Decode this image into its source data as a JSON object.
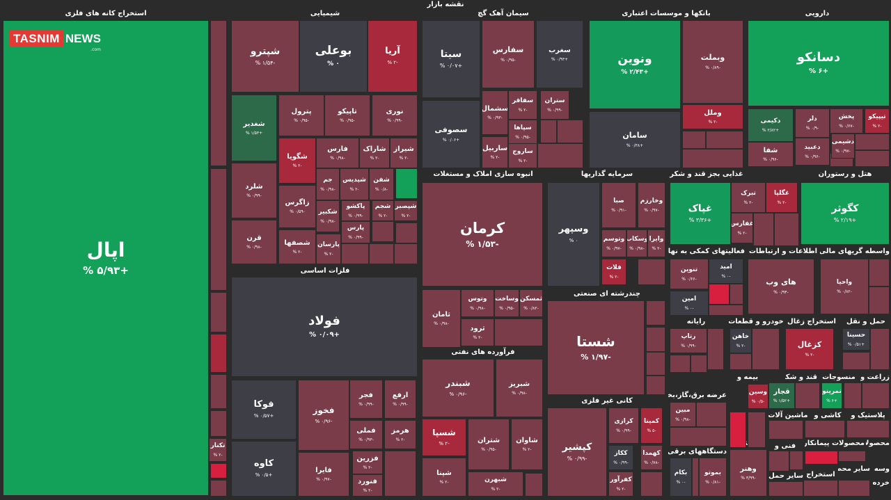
{
  "page_title": "نقشه بازار",
  "logo": {
    "part1": "TASNIM",
    "part2": "NEWS",
    "suffix": ".com"
  },
  "colors": {
    "bright_green": "#13a058",
    "green": "#149a5a",
    "dark_green": "#2d6a4a",
    "neutral": "#3e3e46",
    "maroon": "#7a3c48",
    "red": "#a8283c",
    "bright_red": "#d81f3f",
    "background": "#2b2b2b"
  },
  "sectors": [
    "استخراج کانه های فلزی",
    "شیمیایی",
    "سیمان آهک گچ",
    "بانکها و موسسات اعتباری",
    "دارویی",
    "انبوه سازی املاک و مستغلات",
    "سرمایه گذاریها",
    "غذایی بجز قند و شکر",
    "هتل و رستوران",
    "فلزات اساسی",
    "فعالیتهای کمکی به نهاد",
    "اطلاعات و ارتباطات",
    "واسطه گریهای مالی و",
    "فرآورده های نفتی",
    "چندرشته ای صنعتی",
    "رایانه",
    "خودرو و قطعات",
    "استخراج زغال",
    "حمل و نقل",
    "قند و شکر",
    "منسوجات",
    "زراعت و",
    "بیمه و",
    "کانی غیر فلزی",
    "عرضه برق،گاز،بخار و",
    "ماشین آلات",
    "کاشی و",
    "پلاستیک و",
    "دستگاههای برقی",
    "فعالیتهای",
    "فنی و",
    "محصولات پیمانکاری",
    "محصولات",
    "سایر محصولات",
    "وسه سایر",
    "سایر حمل و",
    "استخراج",
    "خرده فروشی"
  ],
  "tiles": [
    {
      "name": "اپال",
      "pct": "+۵/۹۳ %"
    },
    {
      "name": "شپترو",
      "pct": "-۱/۵۴ %"
    },
    {
      "name": "بوعلی",
      "pct": "۰ %"
    },
    {
      "name": "آریا",
      "pct": "-۲ %"
    },
    {
      "name": "شغدیر",
      "pct": "+۱/۵۳ %"
    },
    {
      "name": "پترول",
      "pct": "-۰/۹۵ %"
    },
    {
      "name": "تاپیکو",
      "pct": "-۰/۹۵ %"
    },
    {
      "name": "نوری",
      "pct": "-۰/۹۹ %"
    },
    {
      "name": "شگویا",
      "pct": "-۲ %"
    },
    {
      "name": "فارس",
      "pct": "-۰/۹۸ %"
    },
    {
      "name": "شاراک",
      "pct": "-۲ %"
    },
    {
      "name": "شیراز",
      "pct": "-۲ %"
    },
    {
      "name": "شلرد",
      "pct": "-۰/۹۹ %"
    },
    {
      "name": "زاگرس",
      "pct": "-۰/۵۹ %"
    },
    {
      "name": "جم",
      "pct": "-۰/۹۸ %"
    },
    {
      "name": "شپدیس",
      "pct": "-۲ %"
    },
    {
      "name": "شفن",
      "pct": "-۰/۸ %"
    },
    {
      "name": "شکبیر",
      "pct": "-۰/۹۸ %"
    },
    {
      "name": "پاکشو",
      "pct": "-۰/۹۹ %"
    },
    {
      "name": "شجم",
      "pct": "-۲ %"
    },
    {
      "name": "شپصبر",
      "pct": "-۲ %"
    },
    {
      "name": "قرن",
      "pct": "-۰/۹۸ %"
    },
    {
      "name": "شصفها",
      "pct": "-۲ %"
    },
    {
      "name": "پارسان",
      "pct": "-۲ %"
    },
    {
      "name": "پارس",
      "pct": "-۰/۹۹ %"
    },
    {
      "name": "سیتا",
      "pct": "+۰/۰۷ %"
    },
    {
      "name": "سفارس",
      "pct": "-۰/۹۵ %"
    },
    {
      "name": "سغرب",
      "pct": "+۰/۹۳ %"
    },
    {
      "name": "سفاقر",
      "pct": "-۲ %"
    },
    {
      "name": "ستران",
      "pct": "-۰/۹۹ %"
    },
    {
      "name": "سشمال",
      "pct": "-۰/۹۳ %"
    },
    {
      "name": "سپاها",
      "pct": "-۰/۹۵ %"
    },
    {
      "name": "سصوفی",
      "pct": "+۰/۰۶ %"
    },
    {
      "name": "ساربیل",
      "pct": "-۲ %"
    },
    {
      "name": "ساروج",
      "pct": "-۲ %"
    },
    {
      "name": "ونوین",
      "pct": "+۲/۴۳ %"
    },
    {
      "name": "وبملت",
      "pct": "-۰/۸۹ %"
    },
    {
      "name": "وملل",
      "pct": "-۲ %"
    },
    {
      "name": "سامان",
      "pct": "+۰/۳۸ %"
    },
    {
      "name": "دسانکو",
      "pct": "+۶ %"
    },
    {
      "name": "دکیمی",
      "pct": "+۲/۸۲ %"
    },
    {
      "name": "دلر",
      "pct": "-۰/۹ %"
    },
    {
      "name": "پخش",
      "pct": "-۰/۶۷ %"
    },
    {
      "name": "تیپیکو",
      "pct": "-۲ %"
    },
    {
      "name": "دشیمی",
      "pct": "-۰/۹۷ %"
    },
    {
      "name": "شفا",
      "pct": "-۰/۹۶ %"
    },
    {
      "name": "دعبید",
      "pct": "-۰/۹۶ %"
    },
    {
      "name": "کرمان",
      "pct": "-۱/۵۳ %"
    },
    {
      "name": "وسپهر",
      "pct": "۰ %"
    },
    {
      "name": "صبا",
      "pct": "-۰/۹۱ %"
    },
    {
      "name": "وخارزم",
      "pct": "-۰/۹۷ %"
    },
    {
      "name": "وتوسم",
      "pct": "-۰/۹۷ %"
    },
    {
      "name": "وسکاب",
      "pct": "-۰/۹۸ %"
    },
    {
      "name": "وایرا",
      "pct": "-۲ %"
    },
    {
      "name": "فلات",
      "pct": "-۲ %"
    },
    {
      "name": "غپاک",
      "pct": "+۳/۳۶ %"
    },
    {
      "name": "تبرک",
      "pct": "-۲ %"
    },
    {
      "name": "غگلپا",
      "pct": "-۲ %"
    },
    {
      "name": "غفارس",
      "pct": "-۲ %"
    },
    {
      "name": "کگوثر",
      "pct": "+۲/۱۹ %"
    },
    {
      "name": "فولاد",
      "pct": "+۰/۰۹ %"
    },
    {
      "name": "فوکا",
      "pct": "+۰/۵۷ %"
    },
    {
      "name": "فخوز",
      "pct": "-۰/۹۶ %"
    },
    {
      "name": "فجر",
      "pct": "-۰/۹۹ %"
    },
    {
      "name": "ارفع",
      "pct": "-۰/۹۹ %"
    },
    {
      "name": "فملی",
      "pct": "-۰/۹۳ %"
    },
    {
      "name": "هرمز",
      "pct": "-۲ %"
    },
    {
      "name": "کاوه",
      "pct": "+۰/۵ %"
    },
    {
      "name": "فایرا",
      "pct": "-۰/۹۷ %"
    },
    {
      "name": "فزرین",
      "pct": "-۲ %"
    },
    {
      "name": "فنورد",
      "pct": "-۲ %"
    },
    {
      "name": "تکنار",
      "pct": "-۲ %"
    },
    {
      "name": "ثامان",
      "pct": "-۰/۹۸ %"
    },
    {
      "name": "وتوس",
      "pct": "-۰/۹۸ %"
    },
    {
      "name": "وساخت",
      "pct": "-۰/۹۵ %"
    },
    {
      "name": "ثمسکن",
      "pct": "-۰/۸۲ %"
    },
    {
      "name": "ثرود",
      "pct": "-۲ %"
    },
    {
      "name": "شستا",
      "pct": "-۱/۹۷ %"
    },
    {
      "name": "تنوین",
      "pct": "-۰/۶۶ %"
    },
    {
      "name": "امید",
      "pct": "-۰ %"
    },
    {
      "name": "امین",
      "pct": "-۰ %"
    },
    {
      "name": "های وب",
      "pct": "-۰/۹۴ %"
    },
    {
      "name": "واحیا",
      "pct": "-۰/۸۲ %"
    },
    {
      "name": "شبندر",
      "pct": "-۰/۹۶ %"
    },
    {
      "name": "شبریز",
      "pct": "-۰/۹۸ %"
    },
    {
      "name": "شسپا",
      "pct": "-۲ %"
    },
    {
      "name": "شتران",
      "pct": "-۰/۹۵ %"
    },
    {
      "name": "شاوان",
      "pct": "-۲ %"
    },
    {
      "name": "شپنا",
      "pct": "-۲ %"
    },
    {
      "name": "شبهرن",
      "pct": "-۲ %"
    },
    {
      "name": "رتاپ",
      "pct": "-۰/۹۹ %"
    },
    {
      "name": "خاهن",
      "pct": "-۲ %"
    },
    {
      "name": "کزغال",
      "pct": "-۲ %"
    },
    {
      "name": "حسینا",
      "pct": "+۰/۵۱ %"
    },
    {
      "name": "وسین",
      "pct": "-۰/۵ %"
    },
    {
      "name": "قجار",
      "pct": "+۱/۵۲ %"
    },
    {
      "name": "نمرینو",
      "pct": "+۶ %"
    },
    {
      "name": "کپشیر",
      "pct": "-۰/۹۹ %"
    },
    {
      "name": "کرازی",
      "pct": "-۰/۹۹ %"
    },
    {
      "name": "کمینا",
      "pct": "-۵ %"
    },
    {
      "name": "ککاز",
      "pct": "-۰/۹۹ %"
    },
    {
      "name": "کهمدا",
      "pct": "-۰/۷۸ %"
    },
    {
      "name": "کفرآور",
      "pct": "-۲ %"
    },
    {
      "name": "مبین",
      "pct": "-۰/۹۸ %"
    },
    {
      "name": "بکام",
      "pct": "-۰ %"
    },
    {
      "name": "بموتو",
      "pct": "-۰/۸۱ %"
    },
    {
      "name": "وهنر",
      "pct": "-۳/۹۹ %"
    }
  ]
}
